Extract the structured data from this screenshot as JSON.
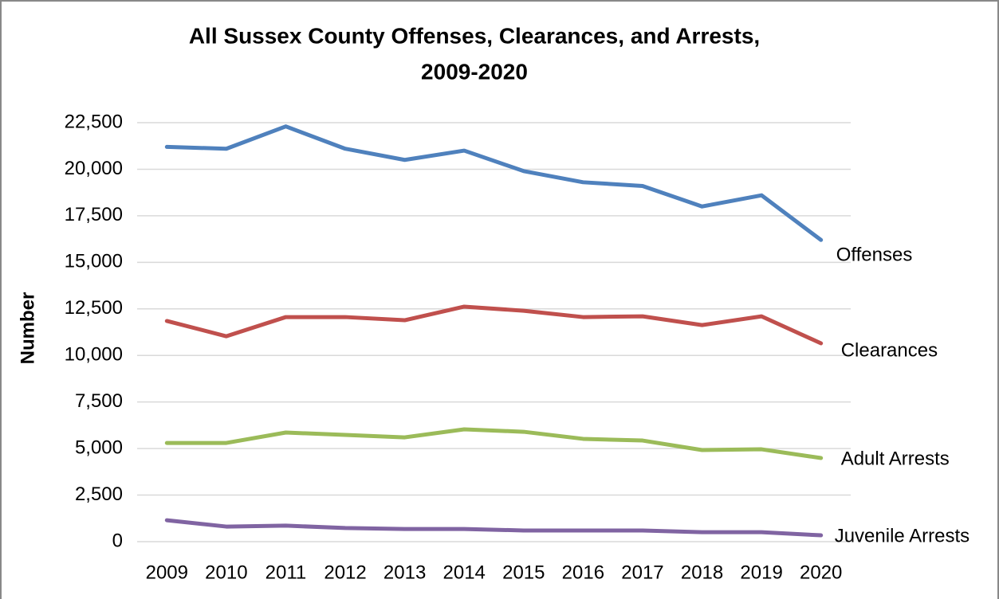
{
  "chart_data": {
    "type": "line",
    "title": [
      "All Sussex County Offenses, Clearances, and Arrests,",
      "2009-2020"
    ],
    "y_label": "Number",
    "categories": [
      "2009",
      "2010",
      "2011",
      "2012",
      "2013",
      "2014",
      "2015",
      "2016",
      "2017",
      "2018",
      "2019",
      "2020"
    ],
    "series": [
      {
        "name": "Offenses",
        "color": "#4f81bd",
        "values": [
          21200,
          21100,
          22300,
          21100,
          20500,
          21000,
          19900,
          19300,
          19100,
          18000,
          18600,
          16200
        ]
      },
      {
        "name": "Clearances",
        "color": "#c0504d",
        "values": [
          11850,
          11030,
          12060,
          12060,
          11890,
          12620,
          12400,
          12060,
          12100,
          11630,
          12100,
          10650
        ]
      },
      {
        "name": "Adult Arrests",
        "color": "#9bbb59",
        "values": [
          5300,
          5300,
          5860,
          5730,
          5600,
          6030,
          5900,
          5520,
          5430,
          4920,
          4960,
          4490
        ]
      },
      {
        "name": "Juvenile Arrests",
        "color": "#8064a2",
        "values": [
          1150,
          810,
          860,
          730,
          680,
          680,
          600,
          600,
          600,
          510,
          510,
          340
        ]
      }
    ],
    "ylim": [
      0,
      22500
    ],
    "yticks": [
      0,
      {
        "value": 2500,
        "label": "2,500"
      },
      {
        "value": 5000,
        "label": "5,000"
      },
      {
        "value": 7500,
        "label": "7,500"
      },
      {
        "value": 10000,
        "label": "10,000"
      },
      {
        "value": 12500,
        "label": "12,500"
      },
      {
        "value": 15000,
        "label": "15,000"
      },
      {
        "value": 17500,
        "label": "17,500"
      },
      {
        "value": 20000,
        "label": "20,000"
      },
      {
        "value": 22500,
        "label": "22,500"
      }
    ],
    "grid": true
  }
}
